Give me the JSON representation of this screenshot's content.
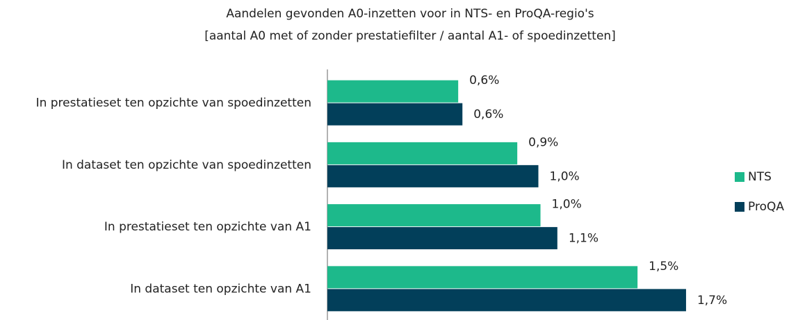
{
  "chart_data": {
    "type": "hbar",
    "title": "Aandelen gevonden A0-inzetten voor in NTS- en ProQA-regio's",
    "subtitle": "[aantal A0 met of zonder prestatiefilter / aantal A1- of spoedinzetten]",
    "categories": [
      "In prestatieset ten opzichte van spoedinzetten",
      "In dataset ten opzichte van spoedinzetten",
      "In prestatieset ten opzichte van A1",
      "In dataset ten opzichte van A1"
    ],
    "series": [
      {
        "name": "NTS",
        "color": "#1db98b",
        "values": [
          0.62,
          0.9,
          1.01,
          1.47
        ],
        "value_labels": [
          "0,6%",
          "0,9%",
          "1,0%",
          "1,5%"
        ]
      },
      {
        "name": "ProQA",
        "color": "#023f5a",
        "values": [
          0.64,
          1.0,
          1.09,
          1.7
        ],
        "value_labels": [
          "0,6%",
          "1,0%",
          "1,1%",
          "1,7%"
        ]
      }
    ],
    "xlim": [
      0,
      1.8
    ],
    "legend": "right"
  }
}
